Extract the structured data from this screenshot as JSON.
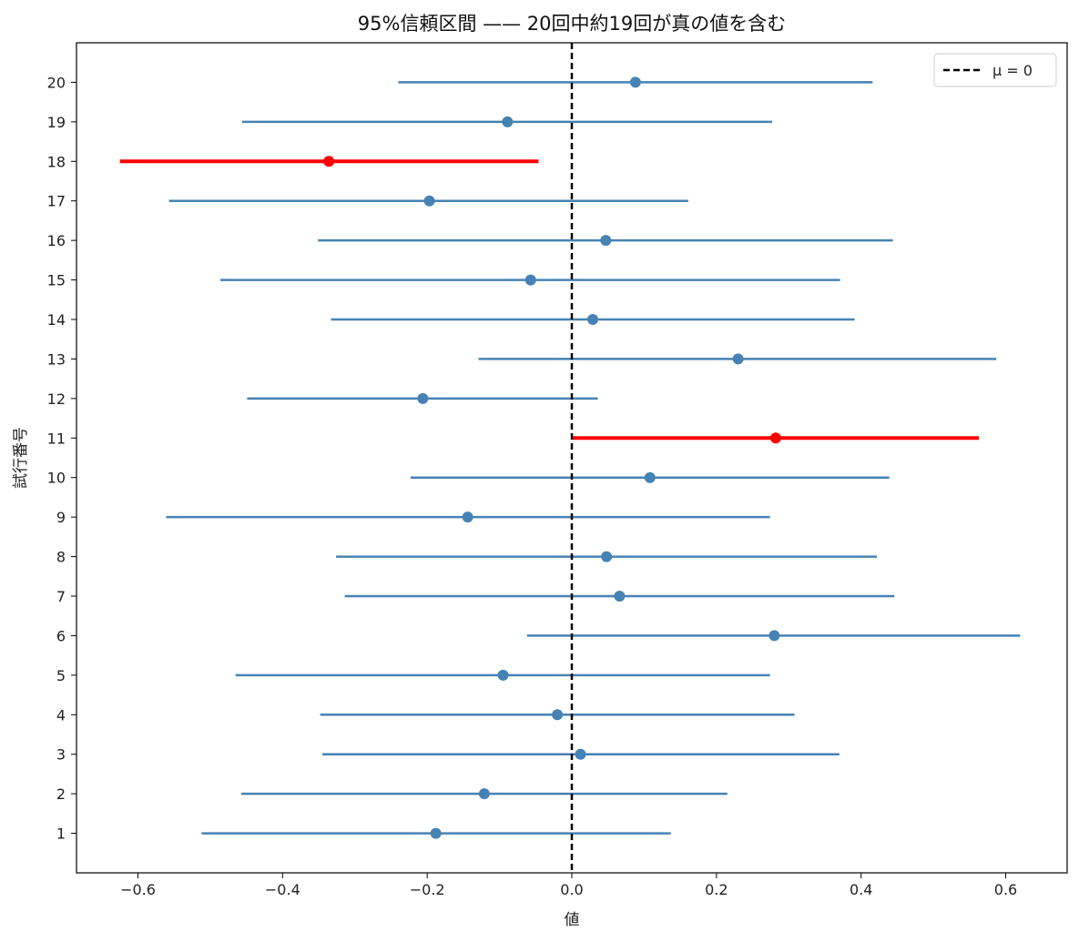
{
  "chart_data": {
    "type": "errorbar",
    "title": "95%信頼区間 —— 20回中約19回が真の値を含む",
    "xlabel": "値",
    "ylabel": "試行番号",
    "xlim": [
      -0.685,
      0.685
    ],
    "ylim": [
      0,
      21
    ],
    "x_ticks": [
      -0.6,
      -0.4,
      -0.2,
      0.0,
      0.2,
      0.4,
      0.6
    ],
    "x_tick_labels": [
      "−0.6",
      "−0.4",
      "−0.2",
      "0.0",
      "0.2",
      "0.4",
      "0.6"
    ],
    "reference_line": {
      "x": 0,
      "style": "dashed",
      "color": "#000000",
      "label": "μ = 0"
    },
    "legend": {
      "position": "top-right",
      "entries": [
        "μ = 0"
      ]
    },
    "colors": {
      "contains": "#4682b4",
      "misses": "#ff0000"
    },
    "trials": [
      {
        "trial": 1,
        "mean": -0.188,
        "lower": -0.512,
        "upper": 0.137,
        "contains": true
      },
      {
        "trial": 2,
        "mean": -0.121,
        "lower": -0.457,
        "upper": 0.215,
        "contains": true
      },
      {
        "trial": 3,
        "mean": 0.012,
        "lower": -0.345,
        "upper": 0.37,
        "contains": true
      },
      {
        "trial": 4,
        "mean": -0.02,
        "lower": -0.348,
        "upper": 0.308,
        "contains": true
      },
      {
        "trial": 5,
        "mean": -0.095,
        "lower": -0.465,
        "upper": 0.274,
        "contains": true
      },
      {
        "trial": 6,
        "mean": 0.28,
        "lower": -0.062,
        "upper": 0.62,
        "contains": true
      },
      {
        "trial": 7,
        "mean": 0.066,
        "lower": -0.314,
        "upper": 0.446,
        "contains": true
      },
      {
        "trial": 8,
        "mean": 0.048,
        "lower": -0.326,
        "upper": 0.422,
        "contains": true
      },
      {
        "trial": 9,
        "mean": -0.144,
        "lower": -0.561,
        "upper": 0.274,
        "contains": true
      },
      {
        "trial": 10,
        "mean": 0.108,
        "lower": -0.223,
        "upper": 0.439,
        "contains": true
      },
      {
        "trial": 11,
        "mean": 0.282,
        "lower": 0.001,
        "upper": 0.563,
        "contains": false
      },
      {
        "trial": 12,
        "mean": -0.206,
        "lower": -0.449,
        "upper": 0.036,
        "contains": true
      },
      {
        "trial": 13,
        "mean": 0.23,
        "lower": -0.129,
        "upper": 0.587,
        "contains": true
      },
      {
        "trial": 14,
        "mean": 0.029,
        "lower": -0.333,
        "upper": 0.391,
        "contains": true
      },
      {
        "trial": 15,
        "mean": -0.057,
        "lower": -0.486,
        "upper": 0.371,
        "contains": true
      },
      {
        "trial": 16,
        "mean": 0.047,
        "lower": -0.351,
        "upper": 0.444,
        "contains": true
      },
      {
        "trial": 17,
        "mean": -0.197,
        "lower": -0.557,
        "upper": 0.161,
        "contains": true
      },
      {
        "trial": 18,
        "mean": -0.336,
        "lower": -0.625,
        "upper": -0.046,
        "contains": false
      },
      {
        "trial": 19,
        "mean": -0.089,
        "lower": -0.456,
        "upper": 0.277,
        "contains": true
      },
      {
        "trial": 20,
        "mean": 0.088,
        "lower": -0.24,
        "upper": 0.416,
        "contains": true
      }
    ]
  }
}
